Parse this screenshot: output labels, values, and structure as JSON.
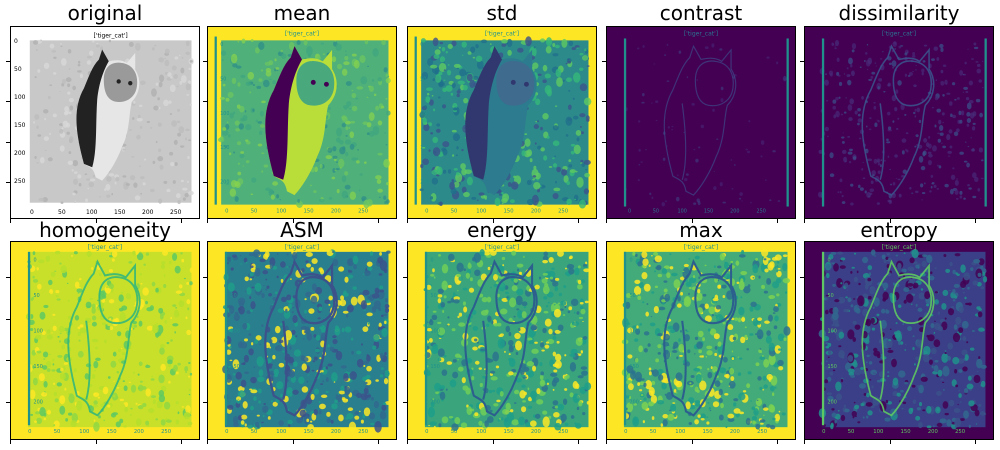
{
  "figure": {
    "panels": [
      {
        "id": "original",
        "title": "original",
        "style": "gray",
        "inner_label": "['tiger_cat']",
        "xticks": [
          "0",
          "50",
          "100",
          "150",
          "200",
          "250"
        ],
        "yticks": [
          "0",
          "50",
          "100",
          "150",
          "200",
          "250"
        ]
      },
      {
        "id": "mean",
        "title": "mean",
        "style": "mean",
        "inner_label": "['tiger_cat']"
      },
      {
        "id": "std",
        "title": "std",
        "style": "std",
        "inner_label": "['tiger_cat']"
      },
      {
        "id": "contrast",
        "title": "contrast",
        "style": "contrast",
        "inner_label": "['tiger_cat']"
      },
      {
        "id": "dissimilarity",
        "title": "dissimilarity",
        "style": "dissimilarity",
        "inner_label": "['tiger_cat']"
      },
      {
        "id": "homogeneity",
        "title": "homogeneity",
        "style": "homogeneity",
        "inner_label": "['tiger_cat']"
      },
      {
        "id": "asm",
        "title": "ASM",
        "style": "asm",
        "inner_label": "['tiger_cat']"
      },
      {
        "id": "energy",
        "title": "energy",
        "style": "energy",
        "inner_label": "['tiger_cat']"
      },
      {
        "id": "max",
        "title": "max",
        "style": "max",
        "inner_label": "['tiger_cat']"
      },
      {
        "id": "entropy",
        "title": "entropy",
        "style": "entropy",
        "inner_label": "['tiger_cat']"
      }
    ],
    "colors": {
      "viridis_dark": "#440154",
      "viridis_blue": "#3b528b",
      "viridis_teal": "#21918c",
      "viridis_green": "#5ec962",
      "viridis_yellow": "#fde725",
      "gray_light": "#c8c8c8",
      "gray_dark": "#222222"
    }
  }
}
